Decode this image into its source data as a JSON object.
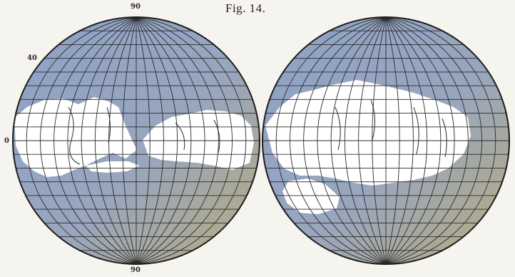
{
  "caption": "Fig. 14.",
  "labels": {
    "top": "90",
    "lat40": "40",
    "equator": "0",
    "bottom": "90"
  },
  "colors": {
    "ocean": "#8ea2c8",
    "ocean_warm": "#b8ab7c",
    "land": "#ffffff",
    "grid": "#2c2a2a",
    "outline": "#1e1c1c"
  },
  "map": {
    "projection": "globular two-hemisphere",
    "hemispheres": [
      "western",
      "eastern"
    ],
    "graticule_step_degrees": 10
  }
}
